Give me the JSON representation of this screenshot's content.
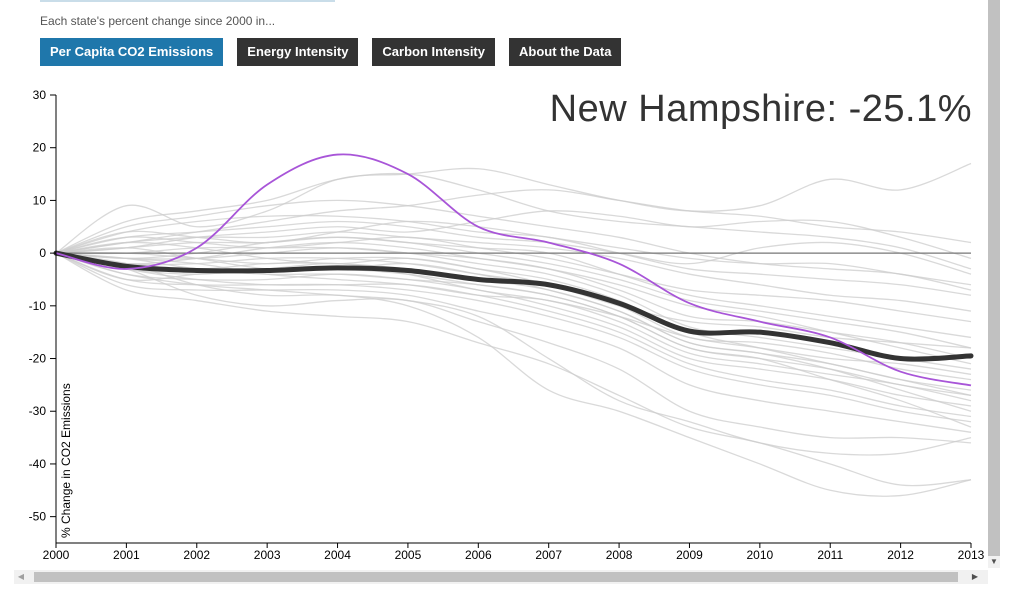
{
  "header": {
    "subtitle": "Each state's percent change since 2000 in..."
  },
  "tabs": [
    {
      "label": "Per Capita CO2 Emissions",
      "active": true
    },
    {
      "label": "Energy Intensity",
      "active": false
    },
    {
      "label": "Carbon Intensity",
      "active": false
    },
    {
      "label": "About the Data",
      "active": false
    }
  ],
  "colors": {
    "active_tab": "#1f77ab",
    "inactive_tab": "#333333",
    "highlight_line": "#a855d8",
    "average_line": "#333333",
    "background_lines": "#cccccc"
  },
  "chart_data": {
    "type": "line",
    "highlight_label": "New Hampshire: -25.1%",
    "ylabel": "% Change in CO2 Emissions",
    "xlabel": "",
    "x": [
      2000,
      2001,
      2002,
      2003,
      2004,
      2005,
      2006,
      2007,
      2008,
      2009,
      2010,
      2011,
      2012,
      2013
    ],
    "xtick_labels": [
      "2000",
      "2001",
      "2002",
      "2003",
      "2004",
      "2005",
      "2006",
      "2007",
      "2008",
      "2009",
      "2010",
      "2011",
      "2012",
      "2013"
    ],
    "ytick_labels": [
      "30",
      "20",
      "10",
      "0",
      "-10",
      "-20",
      "-30",
      "-40",
      "-50"
    ],
    "ylim": [
      -55,
      30
    ],
    "xlim": [
      2000,
      2013
    ],
    "zero_line": true,
    "highlight_series": {
      "name": "New Hampshire",
      "values": [
        0,
        -3,
        1,
        13,
        18.7,
        15,
        5,
        2,
        -2,
        -9.5,
        -13,
        -16,
        -22.5,
        -25.1
      ]
    },
    "average_series": {
      "values": [
        0,
        -2.5,
        -3.3,
        -3.3,
        -2.8,
        -3.3,
        -5,
        -6,
        -9.5,
        -14.8,
        -15,
        -17,
        -20,
        -19.5
      ]
    },
    "background_series": [
      {
        "values": [
          0,
          9,
          5,
          8,
          14,
          15,
          16,
          13,
          10,
          8,
          9,
          14,
          12,
          17
        ]
      },
      {
        "values": [
          0,
          6,
          8,
          10,
          14,
          15,
          12,
          8,
          6,
          5,
          4,
          3,
          1,
          -3
        ]
      },
      {
        "values": [
          0,
          5,
          7,
          9,
          10,
          9,
          7,
          5,
          3,
          0,
          -2,
          -3,
          -4,
          -7
        ]
      },
      {
        "values": [
          0,
          4,
          6,
          7,
          7,
          6,
          4,
          3,
          0,
          -3,
          -4,
          -5,
          -6,
          -8
        ]
      },
      {
        "values": [
          0,
          3,
          4,
          5,
          6,
          5,
          3,
          2,
          0,
          -2,
          1,
          2,
          0,
          -4
        ]
      },
      {
        "values": [
          0,
          2,
          3,
          3,
          4,
          3,
          2,
          1,
          -1,
          -4,
          -6,
          -8,
          -9,
          -11
        ]
      },
      {
        "values": [
          0,
          1,
          2,
          2,
          3,
          2,
          1,
          0,
          -4,
          -8,
          -10,
          -12,
          -14,
          -16
        ]
      },
      {
        "values": [
          0,
          0,
          1,
          1,
          1,
          0,
          -1,
          -3,
          -7,
          -12,
          -13,
          -15,
          -17,
          -20
        ]
      },
      {
        "values": [
          0,
          -1,
          -1,
          0,
          1,
          0,
          -2,
          -4,
          -8,
          -14,
          -16,
          -18,
          -20,
          -22
        ]
      },
      {
        "values": [
          0,
          -2,
          -2,
          -1,
          -1,
          -2,
          -4,
          -6,
          -10,
          -16,
          -17,
          -19,
          -22,
          -24
        ]
      },
      {
        "values": [
          0,
          -3,
          -4,
          -3,
          -3,
          -4,
          -6,
          -8,
          -12,
          -18,
          -20,
          -22,
          -25,
          -27
        ]
      },
      {
        "values": [
          0,
          -4,
          -5,
          -5,
          -4,
          -5,
          -7,
          -10,
          -14,
          -20,
          -22,
          -24,
          -27,
          -29
        ]
      },
      {
        "values": [
          0,
          -5,
          -6,
          -6,
          -6,
          -7,
          -9,
          -12,
          -16,
          -22,
          -25,
          -27,
          -30,
          -32
        ]
      },
      {
        "values": [
          0,
          -6,
          -7,
          -7,
          -7,
          -8,
          -11,
          -14,
          -18,
          -25,
          -28,
          -30,
          -32,
          -34
        ]
      },
      {
        "values": [
          0,
          -3,
          -8,
          -10,
          -9,
          -9,
          -13,
          -17,
          -22,
          -30,
          -33,
          -35,
          -35,
          -36
        ]
      },
      {
        "values": [
          0,
          -7,
          -9,
          -11,
          -12,
          -13,
          -17,
          -21,
          -27,
          -33,
          -36,
          -40,
          -44,
          -43
        ]
      },
      {
        "values": [
          0,
          -2,
          -6,
          -8,
          -8,
          -10,
          -16,
          -26,
          -30,
          -35,
          -40,
          -45,
          -46,
          -43
        ]
      },
      {
        "values": [
          0,
          -4,
          -6,
          -7,
          -8,
          -9,
          -12,
          -20,
          -28,
          -32,
          -36,
          -38,
          -38,
          -35
        ]
      },
      {
        "values": [
          0,
          2,
          4,
          6,
          8,
          9,
          11,
          12,
          10,
          8,
          7,
          5,
          4,
          2
        ]
      },
      {
        "values": [
          0,
          1,
          3,
          4,
          5,
          4,
          6,
          8,
          7,
          5,
          6,
          6,
          3,
          -1
        ]
      },
      {
        "values": [
          0,
          -1,
          0,
          2,
          3,
          2,
          0,
          -2,
          -5,
          -9,
          -11,
          -13,
          -15,
          -18
        ]
      },
      {
        "values": [
          0,
          -2,
          -3,
          -2,
          -2,
          -3,
          -5,
          -7,
          -11,
          -17,
          -19,
          -21,
          -24,
          -26
        ]
      },
      {
        "values": [
          0,
          0,
          -1,
          -2,
          -1,
          -1,
          -3,
          -5,
          -9,
          -15,
          -18,
          -21,
          -24,
          -27
        ]
      },
      {
        "values": [
          0,
          -3,
          -5,
          -6,
          -6,
          -6,
          -8,
          -11,
          -15,
          -21,
          -24,
          -26,
          -29,
          -31
        ]
      },
      {
        "values": [
          0,
          3,
          2,
          1,
          2,
          3,
          1,
          -1,
          -4,
          -7,
          -8,
          -9,
          -11,
          -13
        ]
      },
      {
        "values": [
          0,
          -1,
          -2,
          -4,
          -5,
          -6,
          -8,
          -9,
          -13,
          -19,
          -21,
          -23,
          -25,
          -28
        ]
      },
      {
        "values": [
          0,
          2,
          1,
          -1,
          -2,
          -1,
          -3,
          -6,
          -10,
          -13,
          -14,
          -16,
          -17,
          -18
        ]
      },
      {
        "values": [
          0,
          -5,
          -4,
          -3,
          -2,
          -4,
          -7,
          -9,
          -12,
          -16,
          -18,
          -20,
          -21,
          -23
        ]
      },
      {
        "values": [
          0,
          4,
          3,
          2,
          4,
          6,
          5,
          3,
          1,
          -1,
          -2,
          -2,
          -4,
          -6
        ]
      },
      {
        "values": [
          0,
          -2,
          -1,
          1,
          2,
          1,
          -1,
          -3,
          -6,
          -10,
          -12,
          -15,
          -18,
          -21
        ]
      },
      {
        "values": [
          0,
          1,
          -1,
          -3,
          -3,
          -2,
          -4,
          -7,
          -11,
          -17,
          -19,
          -22,
          -26,
          -30
        ]
      },
      {
        "values": [
          0,
          -1,
          -3,
          -4,
          -4,
          -5,
          -6,
          -8,
          -12,
          -18,
          -20,
          -24,
          -28,
          -33
        ]
      }
    ]
  }
}
